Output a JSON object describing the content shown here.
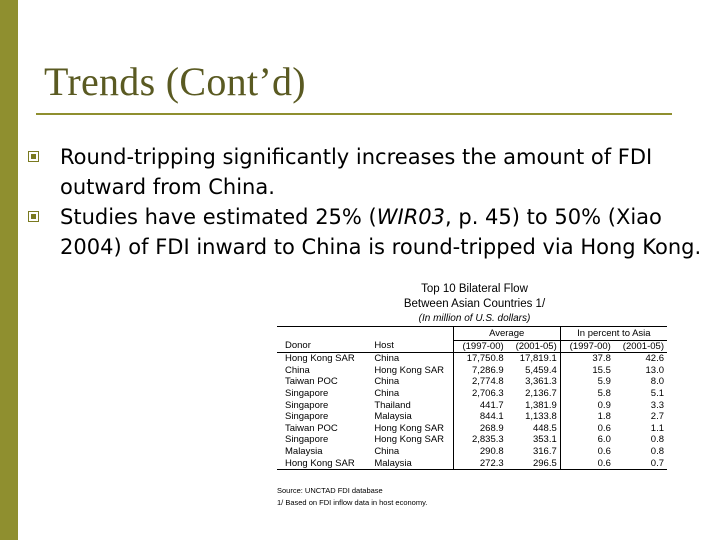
{
  "slide": {
    "title": "Trends (Cont’d)",
    "bullets": [
      {
        "text_before": "Round-tripping significantly increases the amount of FDI outward from China."
      },
      {
        "text_before": "Studies have estimated 25% (",
        "italic": "WIR03",
        "text_after": ", p. 45)  to 50% (Xiao 2004) of FDI inward to China is round-tripped via Hong Kong."
      }
    ]
  },
  "table": {
    "title_line1": "Top 10 Bilateral Flow",
    "title_line2": "Between Asian Countries  1/",
    "title_line3": "(In million of U.S. dollars)",
    "col_donor": "Donor",
    "col_host": "Host",
    "group_average": "Average",
    "group_percent": "In percent to Asia",
    "period1": "(1997-00)",
    "period2": "(2001-05)",
    "rows": [
      {
        "donor": "Hong Kong SAR",
        "host": "China",
        "avg1": "17,750.8",
        "avg2": "17,819.1",
        "pct1": "37.8",
        "pct2": "42.6"
      },
      {
        "donor": "China",
        "host": "Hong Kong SAR",
        "avg1": "7,286.9",
        "avg2": "5,459.4",
        "pct1": "15.5",
        "pct2": "13.0"
      },
      {
        "donor": "Taiwan POC",
        "host": "China",
        "avg1": "2,774.8",
        "avg2": "3,361.3",
        "pct1": "5.9",
        "pct2": "8.0"
      },
      {
        "donor": "Singapore",
        "host": "China",
        "avg1": "2,706.3",
        "avg2": "2,136.7",
        "pct1": "5.8",
        "pct2": "5.1"
      },
      {
        "donor": "Singapore",
        "host": "Thailand",
        "avg1": "441.7",
        "avg2": "1,381.9",
        "pct1": "0.9",
        "pct2": "3.3"
      },
      {
        "donor": "Singapore",
        "host": "Malaysia",
        "avg1": "844.1",
        "avg2": "1,133.8",
        "pct1": "1.8",
        "pct2": "2.7"
      },
      {
        "donor": "Taiwan POC",
        "host": "Hong Kong SAR",
        "avg1": "268.9",
        "avg2": "448.5",
        "pct1": "0.6",
        "pct2": "1.1"
      },
      {
        "donor": "Singapore",
        "host": "Hong Kong SAR",
        "avg1": "2,835.3",
        "avg2": "353.1",
        "pct1": "6.0",
        "pct2": "0.8"
      },
      {
        "donor": "Malaysia",
        "host": "China",
        "avg1": "290.8",
        "avg2": "316.7",
        "pct1": "0.6",
        "pct2": "0.8"
      },
      {
        "donor": "Hong Kong SAR",
        "host": "Malaysia",
        "avg1": "272.3",
        "avg2": "296.5",
        "pct1": "0.6",
        "pct2": "0.7"
      }
    ],
    "source": "Source: UNCTAD FDI database",
    "note": "1/ Based on FDI inflow data in host economy."
  }
}
